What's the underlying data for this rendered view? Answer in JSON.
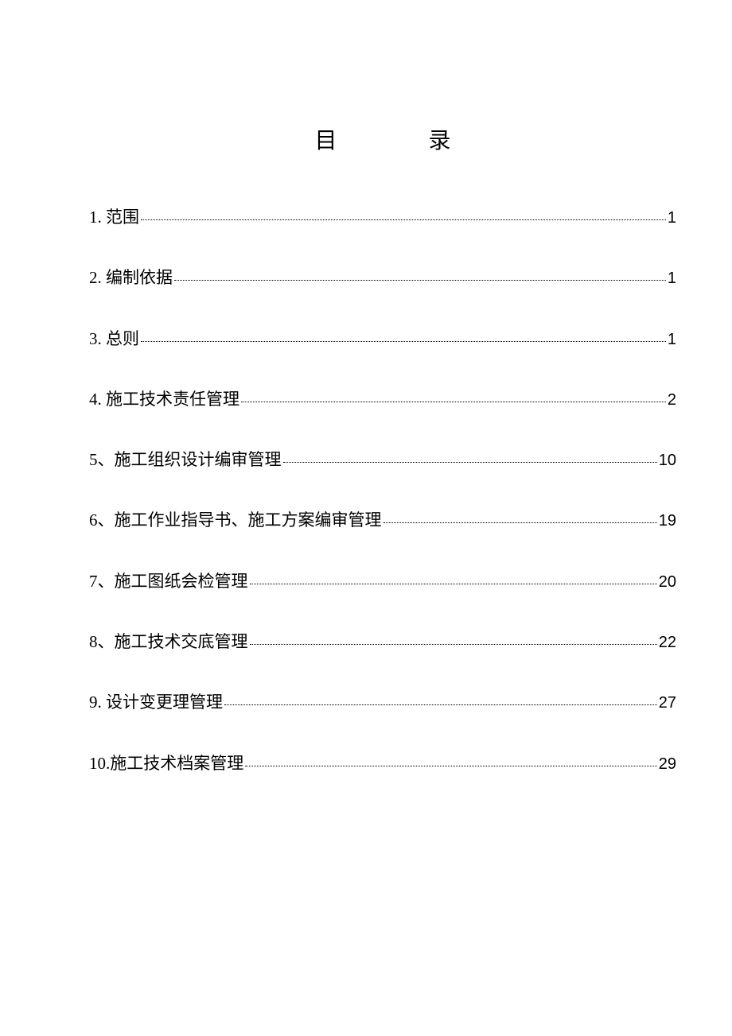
{
  "title": {
    "char1": "目",
    "char2": "录"
  },
  "toc": {
    "entries": [
      {
        "label": "1. 范围",
        "page": "1"
      },
      {
        "label": "2. 编制依据",
        "page": "1"
      },
      {
        "label": "3. 总则",
        "page": "1"
      },
      {
        "label": "4. 施工技术责任管理",
        "page": "2"
      },
      {
        "label": "5、施工组织设计编审管理",
        "page": "10"
      },
      {
        "label": "6、施工作业指导书、施工方案编审管理",
        "page": "19"
      },
      {
        "label": "7、施工图纸会检管理",
        "page": "20"
      },
      {
        "label": "8、施工技术交底管理",
        "page": "22"
      },
      {
        "label": "9. 设计变更理管理",
        "page": "27"
      },
      {
        "label": "10.施工技术档案管理",
        "page": "29"
      }
    ]
  },
  "style": {
    "background_color": "#ffffff",
    "text_color": "#000000",
    "title_fontsize": 28,
    "entry_fontsize": 21,
    "page_fontsize": 20,
    "entry_spacing": 49,
    "leader_style": "dotted",
    "leader_color": "#000000"
  }
}
